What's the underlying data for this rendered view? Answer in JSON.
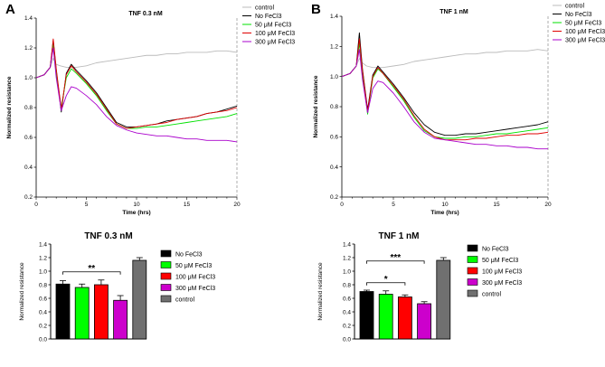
{
  "figure": {
    "panels": [
      {
        "letter": "A"
      },
      {
        "letter": "B"
      }
    ]
  },
  "chart_data": [
    {
      "id": "A-line",
      "type": "line",
      "title": "TNF 0.3 nM",
      "xlabel": "Time (hrs)",
      "ylabel": "Normalized resistance",
      "xlim": [
        0,
        20
      ],
      "ylim": [
        0.2,
        1.4
      ],
      "xticks": [
        "0",
        "5",
        "10",
        "15",
        "20"
      ],
      "yticks": [
        "0.2",
        "0.4",
        "0.6",
        "0.8",
        "1.0",
        "1.2",
        "1.4"
      ],
      "legend_position": "top-right",
      "series": [
        {
          "name": "control",
          "color": "#bbbbbb",
          "x": [
            0,
            0.8,
            1.4,
            1.7,
            2.0,
            2.4,
            3,
            4,
            5,
            6,
            7,
            8,
            9,
            10,
            11,
            12,
            13,
            14,
            15,
            16,
            17,
            18,
            19,
            20
          ],
          "y": [
            1.0,
            1.02,
            1.07,
            1.13,
            1.09,
            1.08,
            1.07,
            1.07,
            1.08,
            1.1,
            1.11,
            1.12,
            1.13,
            1.14,
            1.15,
            1.15,
            1.16,
            1.16,
            1.17,
            1.17,
            1.17,
            1.18,
            1.18,
            1.17
          ]
        },
        {
          "name": "No FeCl3",
          "color": "#000000",
          "x": [
            0,
            0.8,
            1.4,
            1.7,
            2.0,
            2.5,
            3.0,
            3.5,
            4,
            5,
            6,
            7,
            8,
            9,
            10,
            11,
            12,
            13,
            14,
            15,
            16,
            17,
            18,
            19,
            20
          ],
          "y": [
            1.0,
            1.02,
            1.07,
            1.25,
            1.05,
            0.77,
            1.03,
            1.09,
            1.05,
            0.98,
            0.9,
            0.8,
            0.7,
            0.67,
            0.67,
            0.68,
            0.69,
            0.71,
            0.72,
            0.73,
            0.74,
            0.76,
            0.77,
            0.79,
            0.81
          ]
        },
        {
          "name": "50 μM FeCl3",
          "color": "#00e000",
          "x": [
            0,
            0.8,
            1.4,
            1.7,
            2.0,
            2.5,
            3.0,
            3.5,
            4,
            5,
            6,
            7,
            8,
            9,
            10,
            11,
            12,
            13,
            14,
            15,
            16,
            17,
            18,
            19,
            20
          ],
          "y": [
            1.0,
            1.02,
            1.07,
            1.22,
            1.03,
            0.8,
            1.0,
            1.06,
            1.03,
            0.96,
            0.88,
            0.78,
            0.69,
            0.66,
            0.66,
            0.67,
            0.67,
            0.68,
            0.69,
            0.7,
            0.71,
            0.72,
            0.73,
            0.74,
            0.76
          ]
        },
        {
          "name": "100 μM FeCl3",
          "color": "#e00000",
          "x": [
            0,
            0.8,
            1.4,
            1.7,
            2.0,
            2.5,
            3.0,
            3.5,
            4,
            5,
            6,
            7,
            8,
            9,
            10,
            11,
            12,
            13,
            14,
            15,
            16,
            17,
            18,
            19,
            20
          ],
          "y": [
            1.0,
            1.02,
            1.07,
            1.26,
            1.06,
            0.79,
            1.02,
            1.08,
            1.04,
            0.97,
            0.89,
            0.79,
            0.69,
            0.66,
            0.67,
            0.68,
            0.69,
            0.7,
            0.72,
            0.73,
            0.74,
            0.76,
            0.77,
            0.78,
            0.8
          ]
        },
        {
          "name": "300 μM FeCl3",
          "color": "#aa00cc",
          "x": [
            0,
            0.8,
            1.4,
            1.7,
            2.0,
            2.5,
            3.0,
            3.5,
            4,
            5,
            6,
            7,
            8,
            9,
            10,
            11,
            12,
            13,
            14,
            15,
            16,
            17,
            18,
            19,
            20
          ],
          "y": [
            1.0,
            1.02,
            1.07,
            1.2,
            1.0,
            0.78,
            0.88,
            0.94,
            0.93,
            0.88,
            0.82,
            0.74,
            0.68,
            0.65,
            0.63,
            0.62,
            0.61,
            0.61,
            0.6,
            0.59,
            0.59,
            0.58,
            0.58,
            0.58,
            0.57
          ]
        }
      ]
    },
    {
      "id": "B-line",
      "type": "line",
      "title": "TNF 1 nM",
      "xlabel": "Time (hrs)",
      "ylabel": "Normalized resistance",
      "xlim": [
        0,
        20
      ],
      "ylim": [
        0.2,
        1.4
      ],
      "xticks": [
        "0",
        "5",
        "10",
        "15",
        "20"
      ],
      "yticks": [
        "0.2",
        "0.4",
        "0.6",
        "0.8",
        "1.0",
        "1.2",
        "1.4"
      ],
      "legend_position": "top-right",
      "series": [
        {
          "name": "control",
          "color": "#bbbbbb",
          "x": [
            0,
            0.8,
            1.4,
            1.7,
            2.0,
            2.4,
            3,
            4,
            5,
            6,
            7,
            8,
            9,
            10,
            11,
            12,
            13,
            14,
            15,
            16,
            17,
            18,
            19,
            20
          ],
          "y": [
            1.0,
            1.02,
            1.07,
            1.12,
            1.09,
            1.07,
            1.06,
            1.06,
            1.07,
            1.08,
            1.1,
            1.11,
            1.12,
            1.13,
            1.14,
            1.15,
            1.15,
            1.16,
            1.16,
            1.17,
            1.17,
            1.17,
            1.18,
            1.17
          ]
        },
        {
          "name": "No FeCl3",
          "color": "#000000",
          "x": [
            0,
            0.8,
            1.4,
            1.7,
            2.0,
            2.5,
            3.0,
            3.5,
            4,
            5,
            6,
            7,
            8,
            9,
            10,
            11,
            12,
            13,
            14,
            15,
            16,
            17,
            18,
            19,
            20
          ],
          "y": [
            1.0,
            1.02,
            1.07,
            1.29,
            1.05,
            0.78,
            1.01,
            1.07,
            1.03,
            0.95,
            0.86,
            0.76,
            0.68,
            0.63,
            0.61,
            0.61,
            0.62,
            0.62,
            0.63,
            0.64,
            0.65,
            0.66,
            0.67,
            0.68,
            0.7
          ]
        },
        {
          "name": "50 μM FeCl3",
          "color": "#00e000",
          "x": [
            0,
            0.8,
            1.4,
            1.7,
            2.0,
            2.5,
            3.0,
            3.5,
            4,
            5,
            6,
            7,
            8,
            9,
            10,
            11,
            12,
            13,
            14,
            15,
            16,
            17,
            18,
            19,
            20
          ],
          "y": [
            1.0,
            1.02,
            1.07,
            1.22,
            1.02,
            0.75,
            0.99,
            1.05,
            1.02,
            0.93,
            0.84,
            0.73,
            0.64,
            0.6,
            0.59,
            0.59,
            0.6,
            0.6,
            0.61,
            0.62,
            0.62,
            0.63,
            0.64,
            0.65,
            0.66
          ]
        },
        {
          "name": "100 μM FeCl3",
          "color": "#e00000",
          "x": [
            0,
            0.8,
            1.4,
            1.7,
            2.0,
            2.5,
            3.0,
            3.5,
            4,
            5,
            6,
            7,
            8,
            9,
            10,
            11,
            12,
            13,
            14,
            15,
            16,
            17,
            18,
            19,
            20
          ],
          "y": [
            1.0,
            1.02,
            1.07,
            1.25,
            1.04,
            0.77,
            1.0,
            1.06,
            1.02,
            0.94,
            0.85,
            0.74,
            0.65,
            0.6,
            0.58,
            0.58,
            0.58,
            0.59,
            0.59,
            0.6,
            0.61,
            0.61,
            0.62,
            0.62,
            0.63
          ]
        },
        {
          "name": "300 μM FeCl3",
          "color": "#aa00cc",
          "x": [
            0,
            0.8,
            1.4,
            1.7,
            2.0,
            2.5,
            3.0,
            3.5,
            4,
            5,
            6,
            7,
            8,
            9,
            10,
            11,
            12,
            13,
            14,
            15,
            16,
            17,
            18,
            19,
            20
          ],
          "y": [
            1.0,
            1.02,
            1.07,
            1.18,
            0.98,
            0.76,
            0.92,
            0.97,
            0.96,
            0.89,
            0.8,
            0.7,
            0.63,
            0.59,
            0.58,
            0.57,
            0.56,
            0.55,
            0.55,
            0.54,
            0.54,
            0.53,
            0.53,
            0.52,
            0.52
          ]
        }
      ]
    },
    {
      "id": "A-bar",
      "type": "bar",
      "title": "TNF 0.3 nM",
      "xlabel": "",
      "ylabel": "Normalized resistance",
      "ylim": [
        0,
        1.4
      ],
      "yticks": [
        "0.0",
        "0.2",
        "0.4",
        "0.6",
        "0.8",
        "1.0",
        "1.2",
        "1.4"
      ],
      "categories": [
        "No FeCl3",
        "50 μM FeCl3",
        "100 μM FeCl3",
        "300 μM FeCl3",
        "control"
      ],
      "values": [
        0.81,
        0.76,
        0.8,
        0.57,
        1.16
      ],
      "errors": [
        0.05,
        0.05,
        0.07,
        0.07,
        0.04
      ],
      "colors": [
        "#000000",
        "#00ff00",
        "#ff0000",
        "#cc00cc",
        "#707070"
      ],
      "legend_position": "right",
      "annotations": [
        {
          "text": "**",
          "from": 0,
          "to": 3,
          "y": 0.99
        }
      ]
    },
    {
      "id": "B-bar",
      "type": "bar",
      "title": "TNF 1 nM",
      "xlabel": "",
      "ylabel": "Normalized resistance",
      "ylim": [
        0,
        1.4
      ],
      "yticks": [
        "0.0",
        "0.2",
        "0.4",
        "0.6",
        "0.8",
        "1.0",
        "1.2",
        "1.4"
      ],
      "categories": [
        "No FeCl3",
        "50 μM FeCl3",
        "100 μM FeCl3",
        "300 μM FeCl3",
        "control"
      ],
      "values": [
        0.7,
        0.66,
        0.62,
        0.52,
        1.16
      ],
      "errors": [
        0.02,
        0.05,
        0.03,
        0.03,
        0.04
      ],
      "colors": [
        "#000000",
        "#00ff00",
        "#ff0000",
        "#cc00cc",
        "#707070"
      ],
      "legend_position": "right",
      "annotations": [
        {
          "text": "*",
          "from": 0,
          "to": 2,
          "y": 0.83
        },
        {
          "text": "***",
          "from": 0,
          "to": 3,
          "y": 1.15
        }
      ]
    }
  ]
}
